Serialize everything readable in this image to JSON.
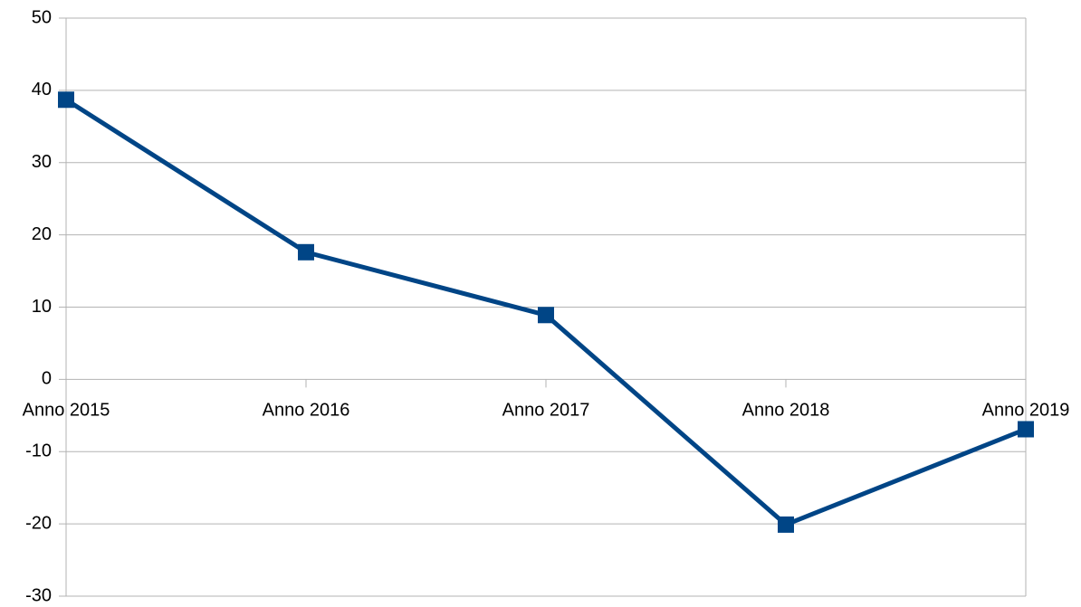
{
  "chart_data": {
    "type": "line",
    "categories": [
      "Anno 2015",
      "Anno 2016",
      "Anno 2017",
      "Anno 2018",
      "Anno 2019"
    ],
    "series": [
      {
        "color": "#004586",
        "values": [
          38.7,
          17.6,
          8.9,
          -20.1,
          -6.9
        ]
      }
    ],
    "ylim": [
      -30,
      50
    ],
    "yticks": [
      -30,
      -20,
      -10,
      0,
      10,
      20,
      30,
      40,
      50
    ],
    "grid": true
  }
}
